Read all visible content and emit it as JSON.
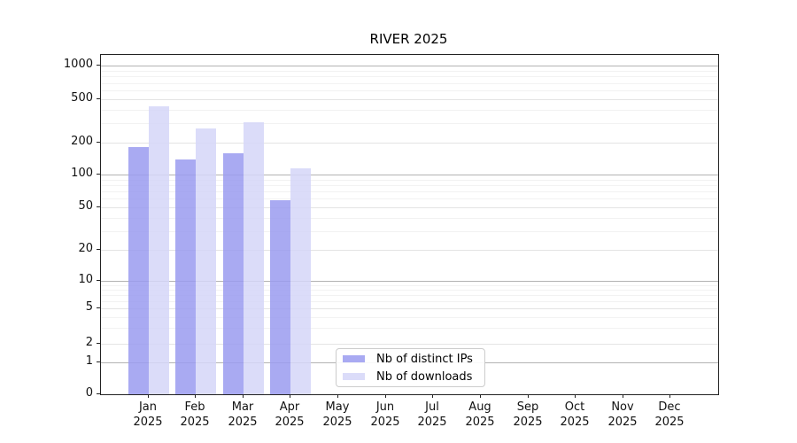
{
  "title": "RIVER 2025",
  "chart_data": {
    "type": "bar",
    "title": "RIVER 2025",
    "categories": [
      "Jan",
      "Feb",
      "Mar",
      "Apr",
      "May",
      "Jun",
      "Jul",
      "Aug",
      "Sep",
      "Oct",
      "Nov",
      "Dec"
    ],
    "year_label": "2025",
    "series": [
      {
        "name": "Nb of distinct IPs",
        "color": "#9a9bf0",
        "values": [
          180,
          140,
          160,
          58,
          0,
          0,
          0,
          0,
          0,
          0,
          0,
          0
        ]
      },
      {
        "name": "Nb of downloads",
        "color": "#d5d6f8",
        "values": [
          430,
          270,
          305,
          115,
          0,
          0,
          0,
          0,
          0,
          0,
          0,
          0
        ]
      }
    ],
    "y_axis": {
      "scale": "symlog",
      "tick_values": [
        0,
        1,
        2,
        5,
        10,
        20,
        50,
        100,
        200,
        500,
        1000
      ],
      "decade_ticks": [
        1,
        10,
        100,
        1000
      ],
      "minor_ticks": [
        3,
        4,
        6,
        7,
        8,
        9,
        30,
        40,
        60,
        70,
        80,
        90,
        300,
        400,
        600,
        700,
        800,
        900
      ],
      "ylim": [
        0,
        1000
      ]
    },
    "legend": {
      "entries": [
        "Nb of distinct IPs",
        "Nb of downloads"
      ],
      "position": "lower center"
    },
    "grid": true,
    "grid_colors": {
      "decade": "#b3b3b3",
      "labeled": "#e4e4e4",
      "minor": "#f2f2f2"
    }
  }
}
